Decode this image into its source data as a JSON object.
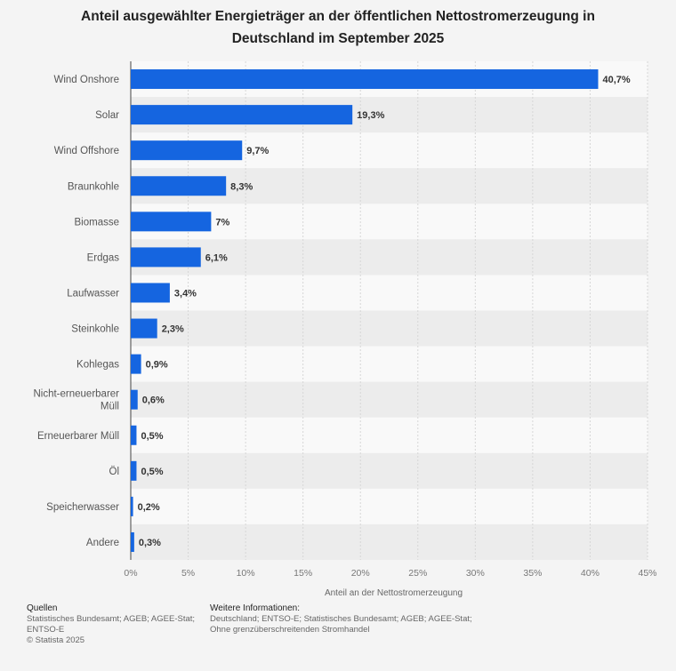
{
  "chart_data": {
    "type": "bar",
    "orientation": "horizontal",
    "title_lines": [
      "Anteil ausgewählter Energieträger an der öffentlichen Nettostromerzeugung in",
      "Deutschland im September 2025"
    ],
    "categories": [
      [
        "Wind Onshore"
      ],
      [
        "Solar"
      ],
      [
        "Wind Offshore"
      ],
      [
        "Braunkohle"
      ],
      [
        "Biomasse"
      ],
      [
        "Erdgas"
      ],
      [
        "Laufwasser"
      ],
      [
        "Steinkohle"
      ],
      [
        "Kohlegas"
      ],
      [
        "Nicht-erneuerbarer",
        "Müll"
      ],
      [
        "Erneuerbarer Müll"
      ],
      [
        "Öl"
      ],
      [
        "Speicherwasser"
      ],
      [
        "Andere"
      ]
    ],
    "values": [
      40.7,
      19.3,
      9.7,
      8.3,
      7,
      6.1,
      3.4,
      2.3,
      0.9,
      0.6,
      0.5,
      0.5,
      0.2,
      0.3
    ],
    "value_labels": [
      "40,7%",
      "19,3%",
      "9,7%",
      "8,3%",
      "7%",
      "6,1%",
      "3,4%",
      "2,3%",
      "0,9%",
      "0,6%",
      "0,5%",
      "0,5%",
      "0,2%",
      "0,3%"
    ],
    "xlim": [
      0,
      45
    ],
    "ticks": [
      0,
      5,
      10,
      15,
      20,
      25,
      30,
      35,
      40,
      45
    ],
    "tick_labels": [
      "0%",
      "5%",
      "10%",
      "15%",
      "20%",
      "25%",
      "30%",
      "35%",
      "40%",
      "45%"
    ],
    "xlabel": "Anteil an der Nettostromerzeugung",
    "ylabel": "",
    "grid": true,
    "legend": "none",
    "colors": {
      "bar": "#1565e0",
      "band": "#ececec",
      "plot_bg": "#f9f9f9",
      "grid": "#d6d6d6"
    }
  },
  "footer": {
    "sources_heading": "Quellen",
    "sources_lines": [
      "Statistisches Bundesamt; AGEB; AGEE-Stat;",
      "ENTSO-E",
      "© Statista 2025"
    ],
    "info_heading": "Weitere Informationen:",
    "info_lines": [
      "Deutschland; ENTSO-E; Statistisches Bundesamt; AGEB; AGEE-Stat;",
      "Ohne grenzüberschreitenden Stromhandel"
    ]
  }
}
